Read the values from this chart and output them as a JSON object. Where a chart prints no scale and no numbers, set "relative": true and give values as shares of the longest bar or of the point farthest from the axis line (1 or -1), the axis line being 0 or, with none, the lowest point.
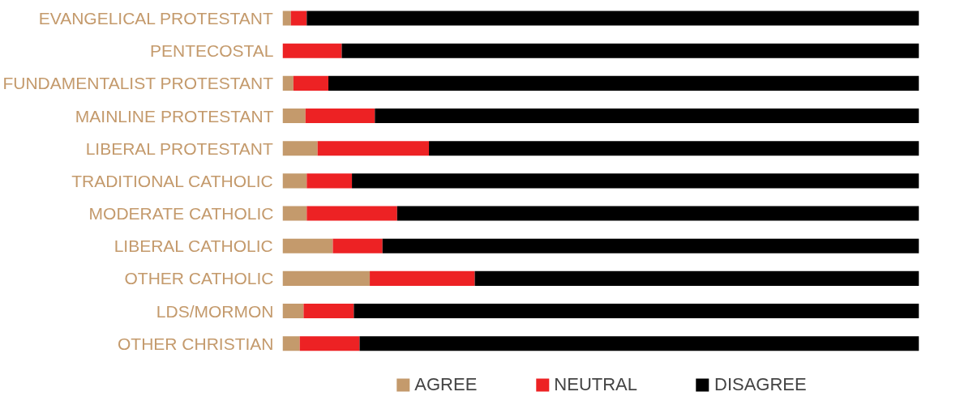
{
  "chart_data": {
    "type": "bar",
    "orientation": "horizontal",
    "stacked": true,
    "relative": true,
    "legend": "bottom",
    "categories": [
      "EVANGELICAL PROTESTANT",
      "PENTECOSTAL",
      "FUNDAMENTALIST PROTESTANT",
      "MAINLINE PROTESTANT",
      "LIBERAL PROTESTANT",
      "TRADITIONAL CATHOLIC",
      "MODERATE CATHOLIC",
      "LIBERAL CATHOLIC",
      "OTHER CATHOLIC",
      "LDS/MORMON",
      "OTHER CHRISTIAN"
    ],
    "series": [
      {
        "name": "AGREE",
        "color": "#c49a6c",
        "values": [
          0.013,
          0,
          0.017,
          0.036,
          0.055,
          0.038,
          0.038,
          0.079,
          0.137,
          0.033,
          0.027
        ]
      },
      {
        "name": "NEUTRAL",
        "color": "#ed2224",
        "values": [
          0.025,
          0.093,
          0.055,
          0.109,
          0.175,
          0.071,
          0.142,
          0.078,
          0.165,
          0.079,
          0.094
        ]
      },
      {
        "name": "DISAGREE",
        "color": "#000000",
        "values": [
          0.962,
          0.907,
          0.928,
          0.855,
          0.77,
          0.891,
          0.82,
          0.843,
          0.698,
          0.888,
          0.879
        ]
      }
    ]
  }
}
